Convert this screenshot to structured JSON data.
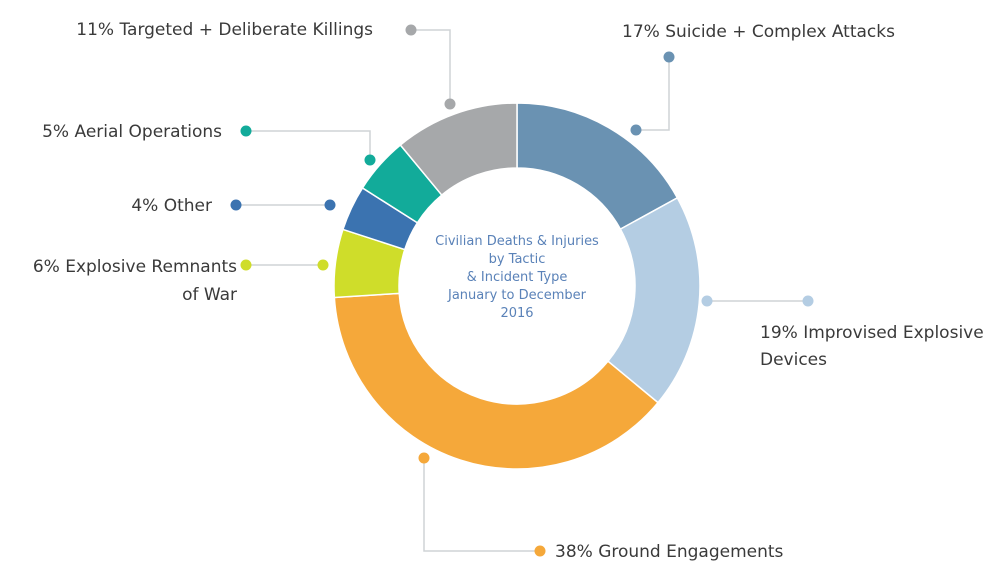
{
  "chart_data": {
    "type": "pie",
    "variant": "donut",
    "center_text": [
      "Civilian Deaths & Injuries",
      "by Tactic",
      "& Incident Type",
      "January to December",
      "2016"
    ],
    "slices": [
      {
        "category": "Suicide + Complex Attacks",
        "value": 17,
        "label_lines": [
          "17% Suicide + Complex Attacks"
        ],
        "color": "#6a92b2"
      },
      {
        "category": "Improvised Explosive Devices",
        "value": 19,
        "label_lines": [
          "19% Improvised Explosive",
          "Devices"
        ],
        "color": "#b4cde3"
      },
      {
        "category": "Ground Engagements",
        "value": 38,
        "label_lines": [
          "38% Ground Engagements"
        ],
        "color": "#f5a83a"
      },
      {
        "category": "Explosive Remnants of War",
        "value": 6,
        "label_lines": [
          "6% Explosive Remnants",
          "of War"
        ],
        "color": "#cfdd2a"
      },
      {
        "category": "Other",
        "value": 4,
        "label_lines": [
          "4% Other"
        ],
        "color": "#3b73b0"
      },
      {
        "category": "Aerial Operations",
        "value": 5,
        "label_lines": [
          "5% Aerial Operations"
        ],
        "color": "#12ab9a"
      },
      {
        "category": "Targeted + Deliberate Killings",
        "value": 11,
        "label_lines": [
          "11% Targeted + Deliberate Killings"
        ],
        "color": "#a6a8aa"
      }
    ]
  }
}
